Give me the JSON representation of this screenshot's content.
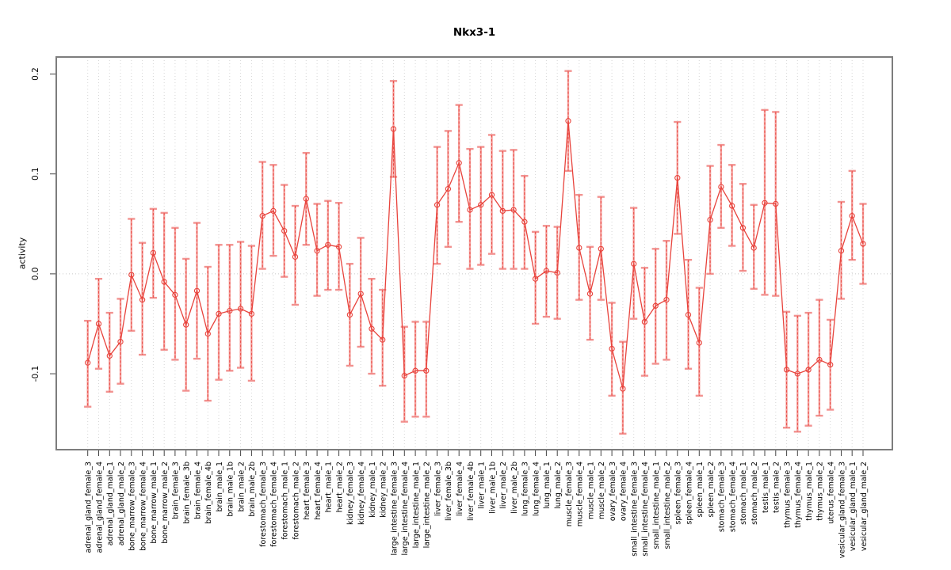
{
  "chart_data": {
    "type": "line",
    "title": "Nkx3-1",
    "ylabel": "activity",
    "xlabel": "",
    "ylim": [
      -0.176,
      0.217
    ],
    "yticks": [
      -0.1,
      0.0,
      0.1,
      0.2
    ],
    "ytick_labels": [
      "-0.1",
      "0.0",
      "0.1",
      "0.2"
    ],
    "grid": "vertical dotted line at every category",
    "zero_line": "dotted horizontal line at 0.0",
    "legend_position": "none",
    "marker": "open-circle with error bars, points connected by line",
    "categories": [
      "adrenal_gland_female_3",
      "adrenal_gland_female_4",
      "adrenal_gland_male_1",
      "adrenal_gland_male_2",
      "bone_marrow_female_3",
      "bone_marrow_female_4",
      "bone_marrow_male_1",
      "bone_marrow_male_2",
      "brain_female_3",
      "brain_female_3b",
      "brain_female_4",
      "brain_female_4b",
      "brain_male_1",
      "brain_male_1b",
      "brain_male_2",
      "brain_male_2b",
      "forestomach_female_3",
      "forestomach_female_4",
      "forestomach_male_1",
      "forestomach_male_2",
      "heart_female_3",
      "heart_female_4",
      "heart_male_1",
      "heart_male_2",
      "kidney_female_3",
      "kidney_female_4",
      "kidney_male_1",
      "kidney_male_2",
      "large_intestine_female_3",
      "large_intestine_female_4",
      "large_intestine_male_1",
      "large_intestine_male_2",
      "liver_female_3",
      "liver_female_3b",
      "liver_female_4",
      "liver_female_4b",
      "liver_male_1",
      "liver_male_1b",
      "liver_male_2",
      "liver_male_2b",
      "lung_female_3",
      "lung_female_4",
      "lung_male_1",
      "lung_male_2",
      "muscle_female_3",
      "muscle_female_4",
      "muscle_male_1",
      "muscle_male_2",
      "ovary_female_3",
      "ovary_female_4",
      "small_intestine_female_3",
      "small_intestine_female_4",
      "small_intestine_male_1",
      "small_intestine_male_2",
      "spleen_female_3",
      "spleen_female_4",
      "spleen_male_1",
      "spleen_male_2",
      "stomach_female_3",
      "stomach_female_4",
      "stomach_male_1",
      "stomach_male_2",
      "testis_male_1",
      "testis_male_2",
      "thymus_female_3",
      "thymus_female_4",
      "thymus_male_1",
      "thymus_male_2",
      "uterus_female_4",
      "vesicular_gland_female_3",
      "vesicular_gland_male_1",
      "vesicular_gland_male_2"
    ],
    "values": [
      -0.089,
      -0.05,
      -0.082,
      -0.068,
      -0.001,
      -0.026,
      0.021,
      -0.008,
      -0.021,
      -0.051,
      -0.017,
      -0.06,
      -0.04,
      -0.037,
      -0.035,
      -0.04,
      0.058,
      0.063,
      0.043,
      0.017,
      0.075,
      0.023,
      0.029,
      0.027,
      -0.041,
      -0.02,
      -0.055,
      -0.066,
      0.145,
      -0.102,
      -0.097,
      -0.097,
      0.069,
      0.085,
      0.111,
      0.064,
      0.069,
      0.079,
      0.063,
      0.064,
      0.052,
      -0.005,
      0.003,
      0.001,
      0.153,
      0.026,
      -0.02,
      0.025,
      -0.075,
      -0.115,
      0.01,
      -0.048,
      -0.032,
      -0.026,
      0.096,
      -0.041,
      -0.069,
      0.054,
      0.087,
      0.068,
      0.046,
      0.026,
      0.071,
      0.07,
      -0.096,
      -0.1,
      -0.096,
      -0.086,
      -0.091,
      0.023,
      0.058,
      0.03
    ],
    "err_low": [
      -0.133,
      -0.095,
      -0.118,
      -0.11,
      -0.057,
      -0.081,
      -0.024,
      -0.076,
      -0.086,
      -0.117,
      -0.085,
      -0.127,
      -0.106,
      -0.097,
      -0.094,
      -0.107,
      0.005,
      0.018,
      -0.003,
      -0.031,
      0.029,
      -0.022,
      -0.016,
      -0.016,
      -0.092,
      -0.073,
      -0.1,
      -0.112,
      0.097,
      -0.148,
      -0.143,
      -0.143,
      0.01,
      0.027,
      0.052,
      0.005,
      0.009,
      0.02,
      0.005,
      0.005,
      0.005,
      -0.05,
      -0.043,
      -0.045,
      0.103,
      -0.026,
      -0.066,
      -0.026,
      -0.122,
      -0.16,
      -0.045,
      -0.102,
      -0.09,
      -0.086,
      0.04,
      -0.095,
      -0.122,
      0.0,
      0.046,
      0.028,
      0.003,
      -0.015,
      -0.021,
      -0.022,
      -0.154,
      -0.158,
      -0.152,
      -0.142,
      -0.136,
      -0.025,
      0.014,
      -0.01
    ],
    "err_high": [
      -0.047,
      -0.005,
      -0.039,
      -0.025,
      0.055,
      0.031,
      0.065,
      0.061,
      0.046,
      0.015,
      0.051,
      0.007,
      0.029,
      0.029,
      0.032,
      0.028,
      0.112,
      0.109,
      0.089,
      0.068,
      0.121,
      0.07,
      0.073,
      0.071,
      0.01,
      0.036,
      -0.005,
      -0.016,
      0.193,
      -0.053,
      -0.048,
      -0.048,
      0.127,
      0.143,
      0.169,
      0.125,
      0.127,
      0.139,
      0.123,
      0.124,
      0.098,
      0.042,
      0.048,
      0.047,
      0.203,
      0.079,
      0.027,
      0.077,
      -0.029,
      -0.068,
      0.066,
      0.006,
      0.025,
      0.033,
      0.152,
      0.014,
      -0.014,
      0.108,
      0.129,
      0.109,
      0.09,
      0.069,
      0.164,
      0.162,
      -0.038,
      -0.042,
      -0.039,
      -0.026,
      -0.046,
      0.072,
      0.103,
      0.07
    ],
    "colors": {
      "point_line": "#e8433c",
      "error_bar": "#f5a09d",
      "error_cap": "#f29290",
      "grid": "#d6d6d6",
      "zero_line": "#c9c9c9",
      "frame": "#7d7d7d",
      "tick": "#444444",
      "text": "#000000"
    }
  }
}
